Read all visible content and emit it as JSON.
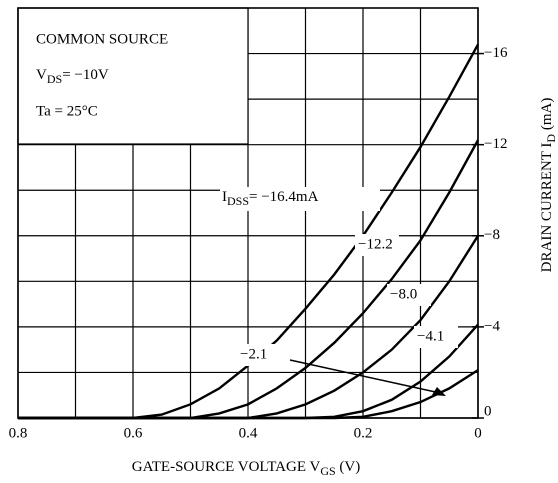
{
  "chart_data": {
    "type": "line",
    "box": {
      "line1": "COMMON SOURCE",
      "line2": {
        "main": "V",
        "sub": "DS",
        "rest": "= −10V"
      },
      "line3": "Ta = 25°C"
    },
    "x_label": {
      "main": "GATE-SOURCE VOLTAGE  V",
      "sub": "GS",
      "rest": "  (V)"
    },
    "y_label": {
      "main": "DRAIN CURRENT  I",
      "sub": "D",
      "rest": "  (mA)"
    },
    "annotation_prefix": {
      "main": "I",
      "sub": "DSS"
    },
    "xlim": [
      0.8,
      0
    ],
    "xticks": [
      0.8,
      0.6,
      0.4,
      0.2,
      0
    ],
    "xgrid": [
      0.8,
      0.7,
      0.6,
      0.5,
      0.4,
      0.3,
      0.2,
      0.1,
      0
    ],
    "ylim": [
      0,
      -18
    ],
    "yticks": [
      {
        "value": -16,
        "label": "−16"
      },
      {
        "value": -12,
        "label": "−12"
      },
      {
        "value": -8,
        "label": "−8"
      },
      {
        "value": -4,
        "label": "−4"
      },
      0
    ],
    "ygrid": [
      0,
      -2,
      -4,
      -6,
      -8,
      -10,
      -12,
      -14,
      -16
    ],
    "x": [
      0.8,
      0.75,
      0.7,
      0.65,
      0.6,
      0.55,
      0.5,
      0.45,
      0.4,
      0.35,
      0.3,
      0.25,
      0.2,
      0.15,
      0.1,
      0.05,
      0
    ],
    "series": [
      {
        "name": "= −16.4mA",
        "color": "#000000",
        "values": [
          0,
          0,
          0,
          0,
          0,
          -0.15,
          -0.6,
          -1.3,
          -2.3,
          -3.4,
          -4.8,
          -6.3,
          -8.0,
          -9.9,
          -11.9,
          -14.1,
          -16.4
        ]
      },
      {
        "name": "−12.2",
        "color": "#000000",
        "values": [
          0,
          0,
          0,
          0,
          0,
          0,
          0,
          -0.2,
          -0.6,
          -1.3,
          -2.2,
          -3.3,
          -4.6,
          -6.1,
          -7.8,
          -9.9,
          -12.2
        ]
      },
      {
        "name": "−8.0",
        "color": "#000000",
        "values": [
          0,
          0,
          0,
          0,
          0,
          0,
          0,
          0,
          0,
          -0.2,
          -0.6,
          -1.2,
          -2.0,
          -3.0,
          -4.3,
          -6.0,
          -8.0
        ]
      },
      {
        "name": "−4.1",
        "color": "#000000",
        "values": [
          0,
          0,
          0,
          0,
          0,
          0,
          0,
          0,
          0,
          0,
          0,
          -0.05,
          -0.3,
          -0.8,
          -1.6,
          -2.7,
          -4.1
        ]
      },
      {
        "name": "−2.1",
        "color": "#000000",
        "values": [
          0,
          0,
          0,
          0,
          0,
          0,
          0,
          0,
          0,
          0,
          0,
          0,
          -0.05,
          -0.3,
          -0.7,
          -1.3,
          -2.1
        ]
      }
    ]
  }
}
